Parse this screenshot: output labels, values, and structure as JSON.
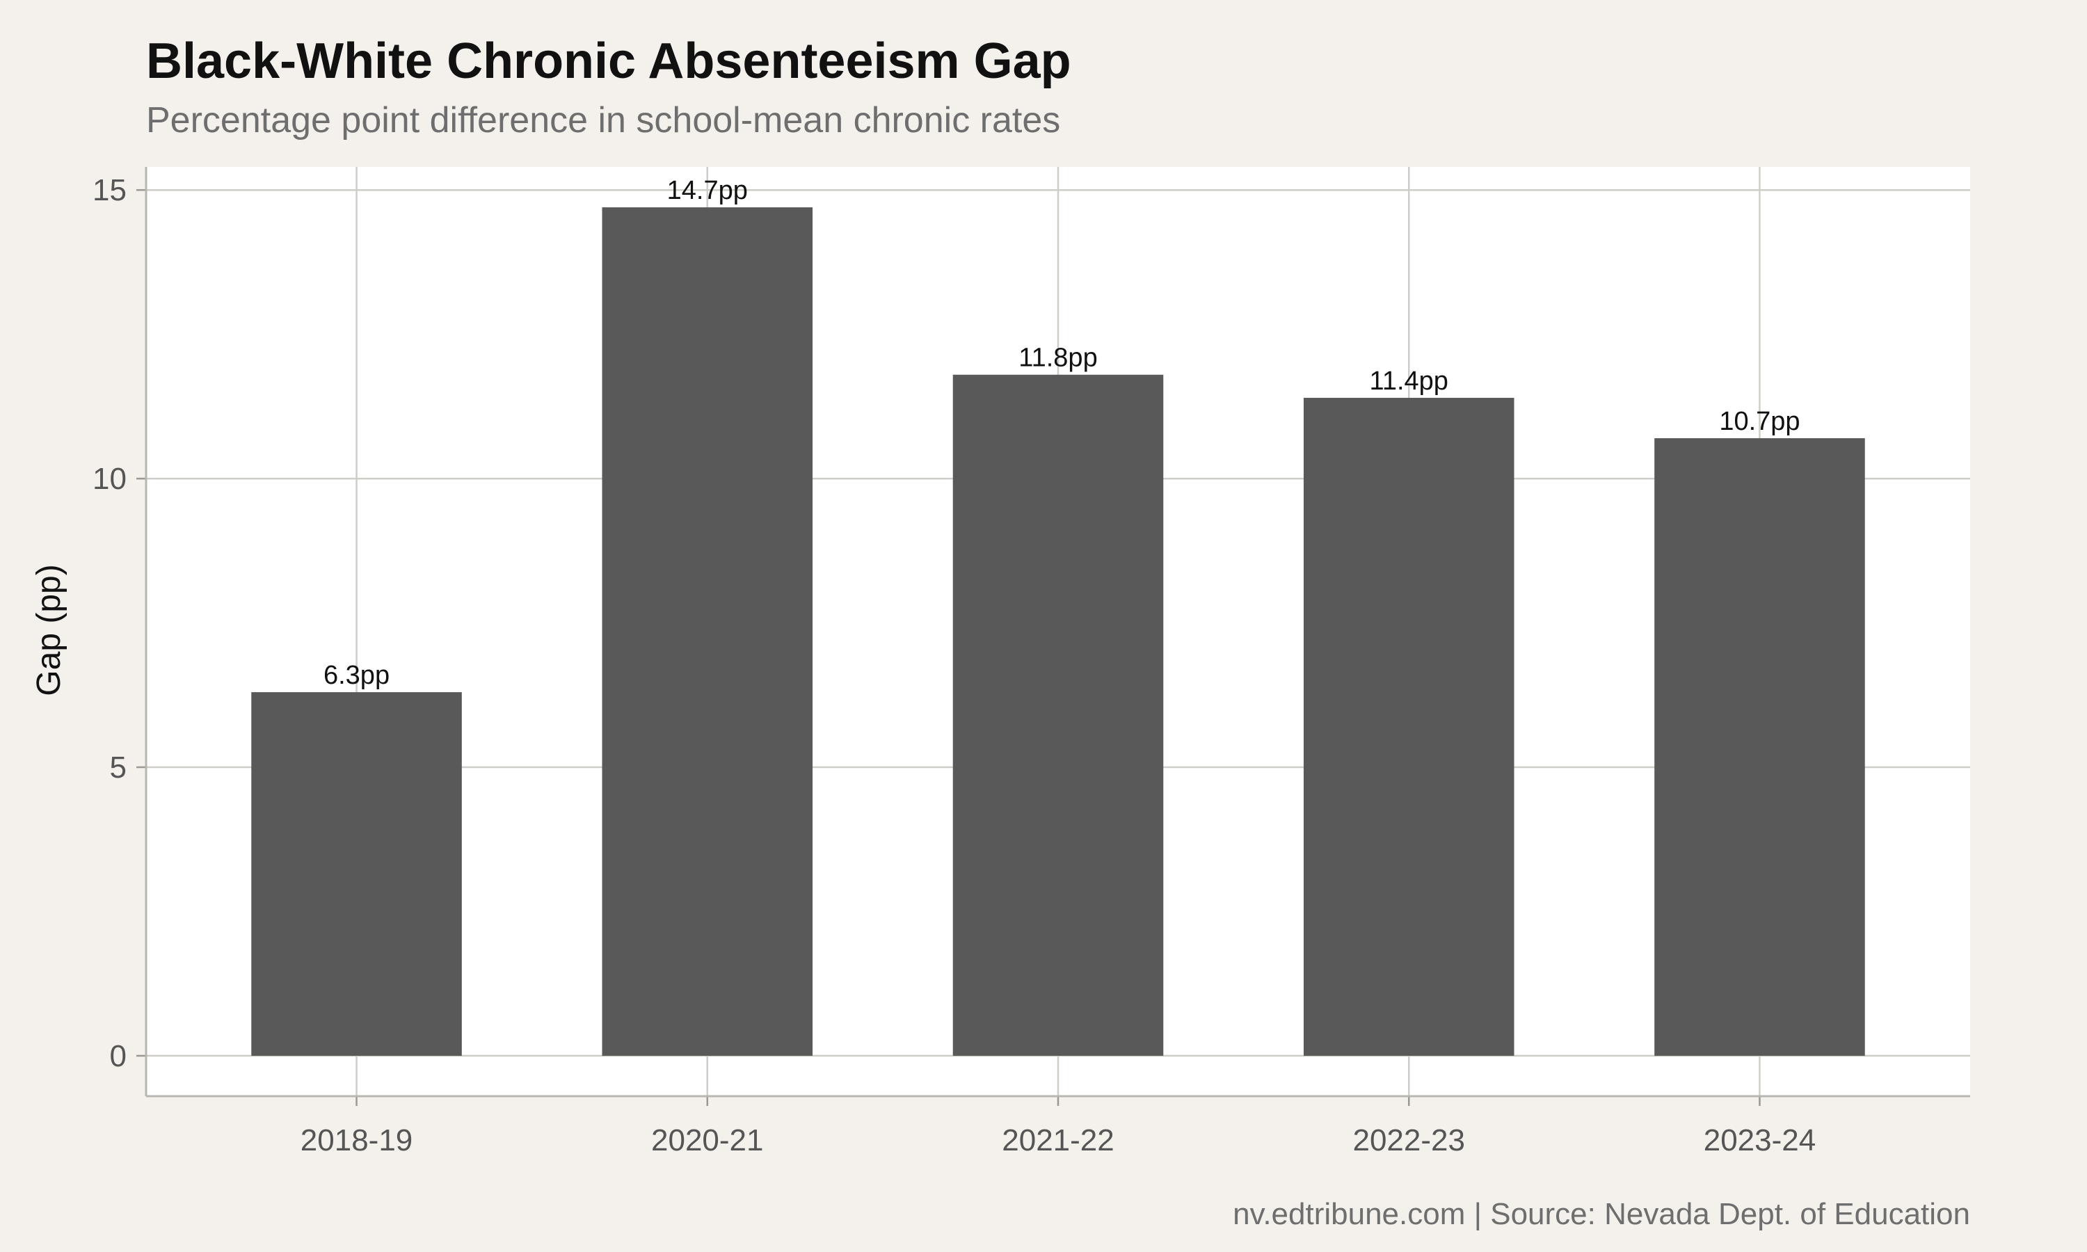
{
  "chart_data": {
    "type": "bar",
    "title": "Black-White Chronic Absenteeism Gap",
    "subtitle": "Percentage point difference in school-mean chronic rates",
    "xlabel": "",
    "ylabel": "Gap (pp)",
    "categories": [
      "2018-19",
      "2020-21",
      "2021-22",
      "2022-23",
      "2023-24"
    ],
    "values": [
      6.3,
      14.7,
      11.8,
      11.4,
      10.7
    ],
    "data_labels": [
      "6.3pp",
      "14.7pp",
      "11.8pp",
      "11.4pp",
      "10.7pp"
    ],
    "y_ticks": [
      0,
      5,
      10,
      15
    ],
    "ylim": [
      -0.7,
      15.4
    ],
    "grid": true,
    "legend": "none",
    "bar_color": "#595959",
    "panel_background": "#ffffff",
    "background": "#f4f1ec",
    "grid_color": "#cfcdc7",
    "caption": "nv.edtribune.com | Source: Nevada Dept. of Education"
  }
}
